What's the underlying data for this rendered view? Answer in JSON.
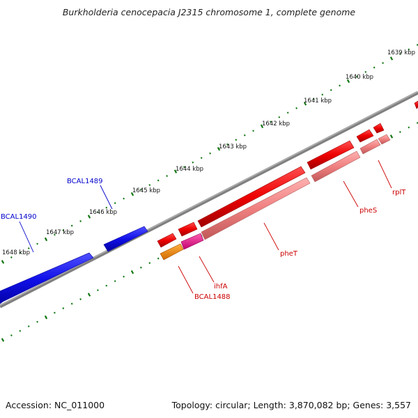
{
  "title": "Burkholderia cenocepacia J2315 chromosome 1, complete genome",
  "footer": {
    "accession": "Accession: NC_011000",
    "summary": "Topology: circular; Length: 3,870,082 bp; Genes: 3,557"
  },
  "scale": {
    "ticks": [
      {
        "label": "1639 kbp",
        "kbp": 1639
      },
      {
        "label": "1640 kbp",
        "kbp": 1640
      },
      {
        "label": "1641 kbp",
        "kbp": 1641
      },
      {
        "label": "1642 kbp",
        "kbp": 1642
      },
      {
        "label": "1643 kbp",
        "kbp": 1643
      },
      {
        "label": "1644 kbp",
        "kbp": 1644
      },
      {
        "label": "1645 kbp",
        "kbp": 1645
      },
      {
        "label": "1646 kbp",
        "kbp": 1646
      },
      {
        "label": "1647 kbp",
        "kbp": 1647
      },
      {
        "label": "1648 kbp",
        "kbp": 1648
      }
    ]
  },
  "genes": [
    {
      "name": "BCAL1490",
      "color": "#0000cc"
    },
    {
      "name": "BCAL1489",
      "color": "#0000cc"
    },
    {
      "name": "BCAL1488",
      "color": "#cc0000"
    },
    {
      "name": "ihfA",
      "color": "#cc0000"
    },
    {
      "name": "pheT",
      "color": "#cc0000"
    },
    {
      "name": "pheS",
      "color": "#cc0000"
    },
    {
      "name": "rplT",
      "color": "#cc0000"
    }
  ],
  "colors": {
    "forward_gene": "#1010e8",
    "cds_red": "#ee0000",
    "feature_pink": "#f08080",
    "feature_orange": "#ff8c00",
    "feature_magenta": "#ee1493",
    "backbone": "#808080",
    "tick": "#117711"
  }
}
